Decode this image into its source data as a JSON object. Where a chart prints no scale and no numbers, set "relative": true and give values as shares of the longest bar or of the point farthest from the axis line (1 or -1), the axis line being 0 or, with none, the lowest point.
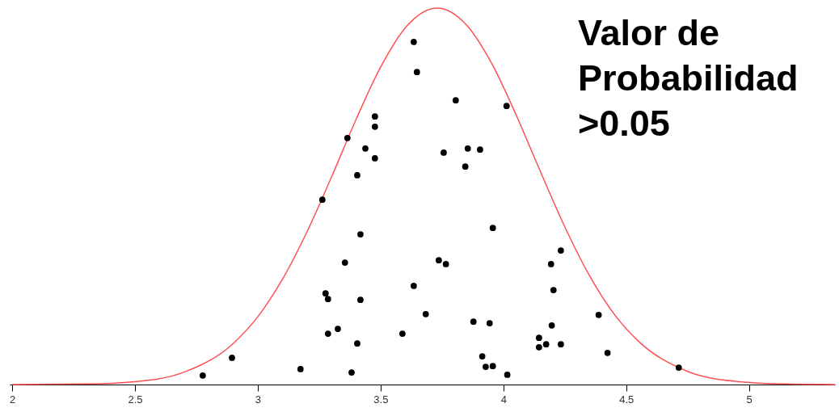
{
  "chart_data": {
    "type": "scatter",
    "relative": true,
    "xlim": [
      1.99,
      5.35
    ],
    "xticks": [
      2,
      2.5,
      3,
      3.5,
      4,
      4.5,
      5
    ],
    "tick_labels": "x",
    "annotations": [
      "Valor de\nProbabilidad\n >0.05"
    ],
    "series": [
      {
        "type": "line",
        "color": "#ff5050",
        "x": [
          2.0,
          2.3,
          2.5,
          2.7,
          2.9,
          3.0,
          3.1,
          3.2,
          3.3,
          3.4,
          3.5,
          3.6,
          3.73,
          3.85,
          3.95,
          4.05,
          4.15,
          4.25,
          4.35,
          4.45,
          4.55,
          4.75,
          4.95,
          5.15,
          5.35
        ],
        "values": [
          0.0001,
          0.0014,
          0.0077,
          0.033,
          0.109,
          0.18,
          0.279,
          0.405,
          0.551,
          0.704,
          0.843,
          0.947,
          1,
          0.955,
          0.856,
          0.719,
          0.567,
          0.419,
          0.29,
          0.188,
          0.115,
          0.035,
          0.0083,
          0.0015,
          0.0002
        ]
      },
      {
        "color": "#000000",
        "x": [
          2.776,
          2.895,
          3.174,
          3.263,
          3.276,
          3.286,
          3.286,
          3.326,
          3.355,
          3.365,
          3.382,
          3.405,
          3.405,
          3.418,
          3.418,
          3.438,
          3.477,
          3.477,
          3.477,
          3.589,
          3.635,
          3.635,
          3.648,
          3.684,
          3.737,
          3.757,
          3.766,
          3.806,
          3.845,
          3.855,
          3.878,
          3.905,
          3.914,
          3.928,
          3.944,
          3.957,
          3.957,
          4.013,
          4.016,
          4.145,
          4.145,
          4.174,
          4.194,
          4.197,
          4.204,
          4.234,
          4.234,
          4.388,
          4.424,
          4.714
        ],
        "values": [
          0.024,
          0.071,
          0.041,
          0.491,
          0.242,
          0.227,
          0.135,
          0.148,
          0.324,
          0.655,
          0.032,
          0.556,
          0.109,
          0.399,
          0.225,
          0.627,
          0.712,
          0.685,
          0.601,
          0.135,
          0.91,
          0.262,
          0.83,
          0.187,
          0.33,
          0.616,
          0.32,
          0.755,
          0.579,
          0.627,
          0.167,
          0.624,
          0.075,
          0.047,
          0.163,
          0.416,
          0.049,
          0.74,
          0.026,
          0.124,
          0.099,
          0.107,
          0.32,
          0.157,
          0.251,
          0.356,
          0.107,
          0.185,
          0.084,
          0.045
        ]
      }
    ]
  }
}
